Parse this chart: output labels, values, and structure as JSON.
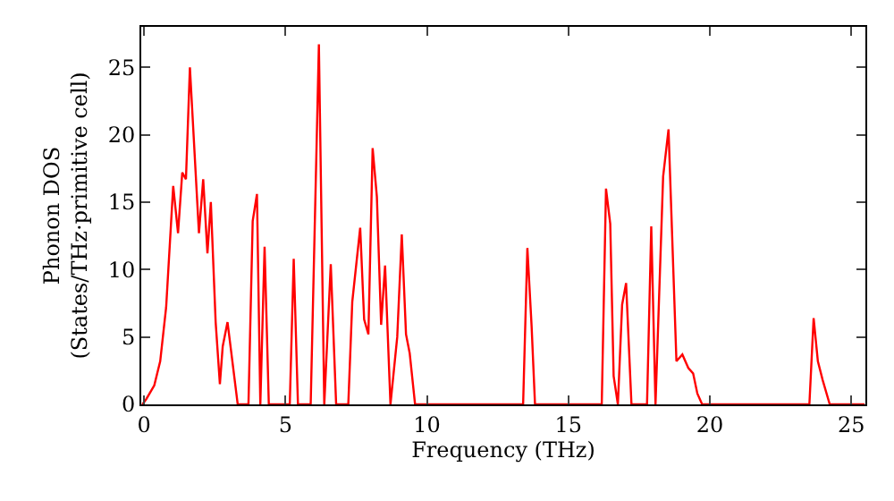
{
  "chart_data": {
    "type": "line",
    "xlabel": "Frequency (THz)",
    "ylabel": "Phonon DOS\n(States/THz·primitive cell)",
    "xlim": [
      -0.1,
      25.5
    ],
    "ylim": [
      0,
      28
    ],
    "xticks": [
      0,
      5,
      10,
      15,
      20,
      25
    ],
    "yticks": [
      0,
      5,
      10,
      15,
      20,
      25
    ],
    "grid": false,
    "marker": "none",
    "line_style": "solid",
    "series": [
      {
        "color": "#ff0000",
        "x": [
          -0.06,
          0.08,
          0.36,
          0.57,
          0.78,
          1.03,
          1.2,
          1.35,
          1.48,
          1.62,
          1.94,
          2.09,
          2.24,
          2.36,
          2.53,
          2.68,
          2.78,
          2.95,
          3.31,
          3.69,
          3.84,
          3.99,
          4.11,
          4.26,
          4.41,
          5.15,
          5.29,
          5.44,
          5.89,
          6.18,
          6.37,
          6.6,
          6.79,
          7.22,
          7.36,
          7.64,
          7.78,
          7.93,
          8.08,
          8.23,
          8.38,
          8.52,
          8.71,
          8.95,
          9.11,
          9.26,
          9.39,
          9.58,
          13.4,
          13.55,
          13.7,
          13.82,
          16.18,
          16.33,
          16.48,
          16.6,
          16.75,
          16.9,
          17.04,
          17.23,
          17.78,
          17.93,
          18.08,
          18.35,
          18.54,
          18.82,
          19.03,
          19.24,
          19.41,
          19.56,
          19.73,
          23.52,
          23.67,
          23.82,
          23.99,
          24.24,
          25.47
        ],
        "values": [
          0,
          0.4,
          1.4,
          3.2,
          7.2,
          16.2,
          12.7,
          17.2,
          16.7,
          25,
          12.7,
          16.7,
          11.2,
          15,
          6.1,
          1.5,
          4.3,
          6.1,
          0,
          0,
          13.6,
          15.6,
          0,
          11.7,
          0,
          0,
          10.8,
          0,
          0,
          26.7,
          0,
          10.4,
          0,
          0,
          7.6,
          13.1,
          6.3,
          5.2,
          19,
          15.4,
          5.9,
          10.3,
          0,
          5,
          12.6,
          5.2,
          3.8,
          0,
          0,
          11.6,
          5.8,
          0,
          0,
          16,
          13.4,
          2.1,
          0,
          7.4,
          9,
          0,
          0,
          13.2,
          0,
          16.9,
          20.4,
          3.2,
          3.7,
          2.7,
          2.3,
          0.8,
          0,
          0,
          6.4,
          3.2,
          1.8,
          0,
          0
        ]
      }
    ]
  }
}
